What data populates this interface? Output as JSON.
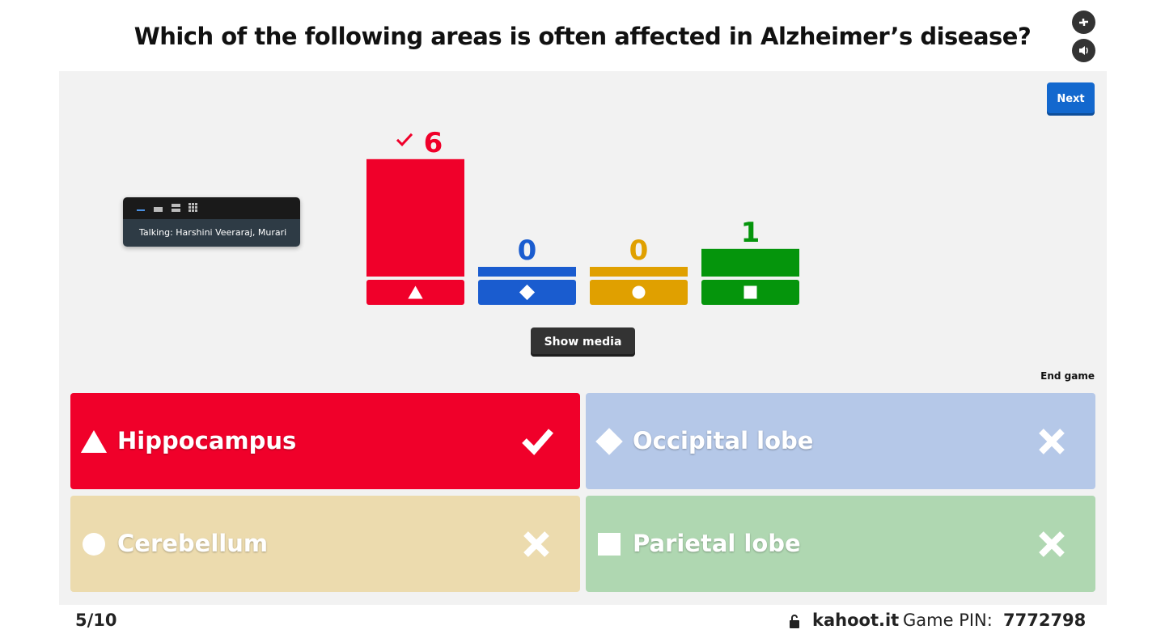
{
  "question": "Which of the following areas is often affected in Alzheimer’s disease?",
  "next": "Next",
  "talking": "Talking: Harshini Veeraraj, Murari",
  "results": {
    "counts": [
      6,
      0,
      0,
      1
    ],
    "colors": [
      "#f0002a",
      "#1a5ccf",
      "#e0a000",
      "#05950c"
    ]
  },
  "show_media": "Show media",
  "end_game": "End game",
  "answers": [
    {
      "text": "Hippocampus",
      "correct": true
    },
    {
      "text": "Occipital lobe",
      "correct": false
    },
    {
      "text": "Cerebellum",
      "correct": false
    },
    {
      "text": "Parietal lobe",
      "correct": false
    }
  ],
  "footer": {
    "progress": "5/10",
    "site": "kahoot.it",
    "pin_label": "Game PIN:",
    "pin": "7772798"
  }
}
